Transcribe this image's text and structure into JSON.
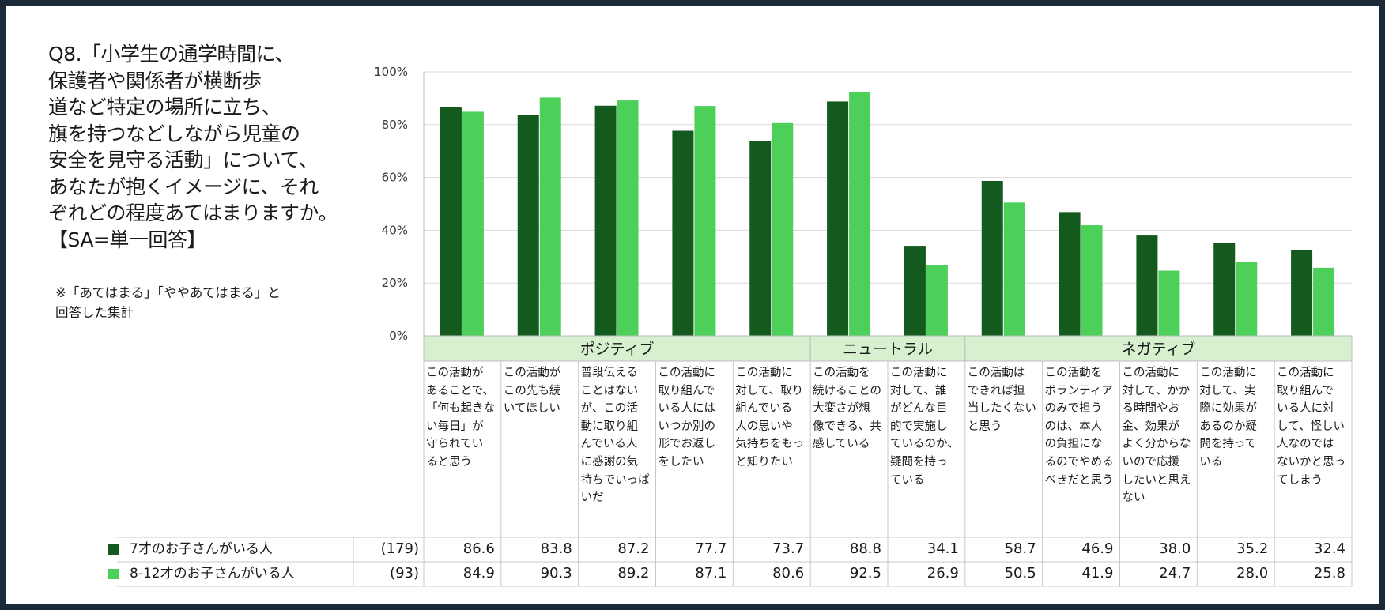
{
  "question": {
    "lines": [
      "Q8.「小学生の通学時間に、",
      "保護者や関係者が横断歩",
      "道など特定の場所に立ち、",
      "旗を持つなどしながら児童の",
      "安全を見守る活動」について、",
      "あなたが抱くイメージに、それ",
      "ぞれどの程度あてはまりますか。",
      "【SA=単一回答】"
    ]
  },
  "note": {
    "lines": [
      "※「あてはまる」「ややあてはまる」と",
      "回答した集計"
    ]
  },
  "colors": {
    "series_a": "#145a1f",
    "series_b": "#4cd05a",
    "group_band": "#d7f1cf"
  },
  "chart_data": {
    "type": "bar",
    "ylim": [
      0,
      100
    ],
    "yticks": [
      "0%",
      "20%",
      "40%",
      "60%",
      "80%",
      "100%"
    ],
    "groups": [
      {
        "label": "ポジティブ",
        "count": 5
      },
      {
        "label": "ニュートラル",
        "count": 2
      },
      {
        "label": "ネガティブ",
        "count": 5
      }
    ],
    "categories": [
      "この活動が\nあることで、\n「何も起きな\nい毎日」が\n守られてい\nると思う",
      "この活動が\nこの先も続\nいてほしい",
      "普段伝える\nことはない\nが、この活\n動に取り組\nんでいる人\nに感謝の気\n持ちでいっぱ\nいだ",
      "この活動に\n取り組んで\nいる人には\nいつか別の\n形でお返し\nをしたい",
      "この活動に\n対して、取り\n組んでいる\n人の思いや\n気持ちをもっ\nと知りたい",
      "この活動を\n続けることの\n大変さが想\n像できる、共\n感している",
      "この活動に\n対して、誰\nがどんな目\n的で実施し\nているのか、\n疑問を持っ\nている",
      "この活動は\nできれば担\n当したくない\nと思う",
      "この活動を\nボランティア\nのみで担う\nのは、本人\nの負担にな\nるのでやめる\nべきだと思う",
      "この活動に\n対して、かか\nる時間やお\n金、効果が\nよく分からな\nいので応援\nしたいと思え\nない",
      "この活動に\n対して、実\n際に効果が\nあるのか疑\n問を持って\nいる",
      "この活動に\n取り組んで\nいる人に対\nして、怪しい\n人なのでは\nないかと思っ\nてしまう"
    ],
    "series": [
      {
        "name": "7才のお子さんがいる人",
        "n": "(179)",
        "values": [
          86.6,
          83.8,
          87.2,
          77.7,
          73.7,
          88.8,
          34.1,
          58.7,
          46.9,
          38.0,
          35.2,
          32.4
        ]
      },
      {
        "name": "8-12才のお子さんがいる人",
        "n": "(93)",
        "values": [
          84.9,
          90.3,
          89.2,
          87.1,
          80.6,
          92.5,
          26.9,
          50.5,
          41.9,
          24.7,
          28.0,
          25.8
        ]
      }
    ]
  }
}
